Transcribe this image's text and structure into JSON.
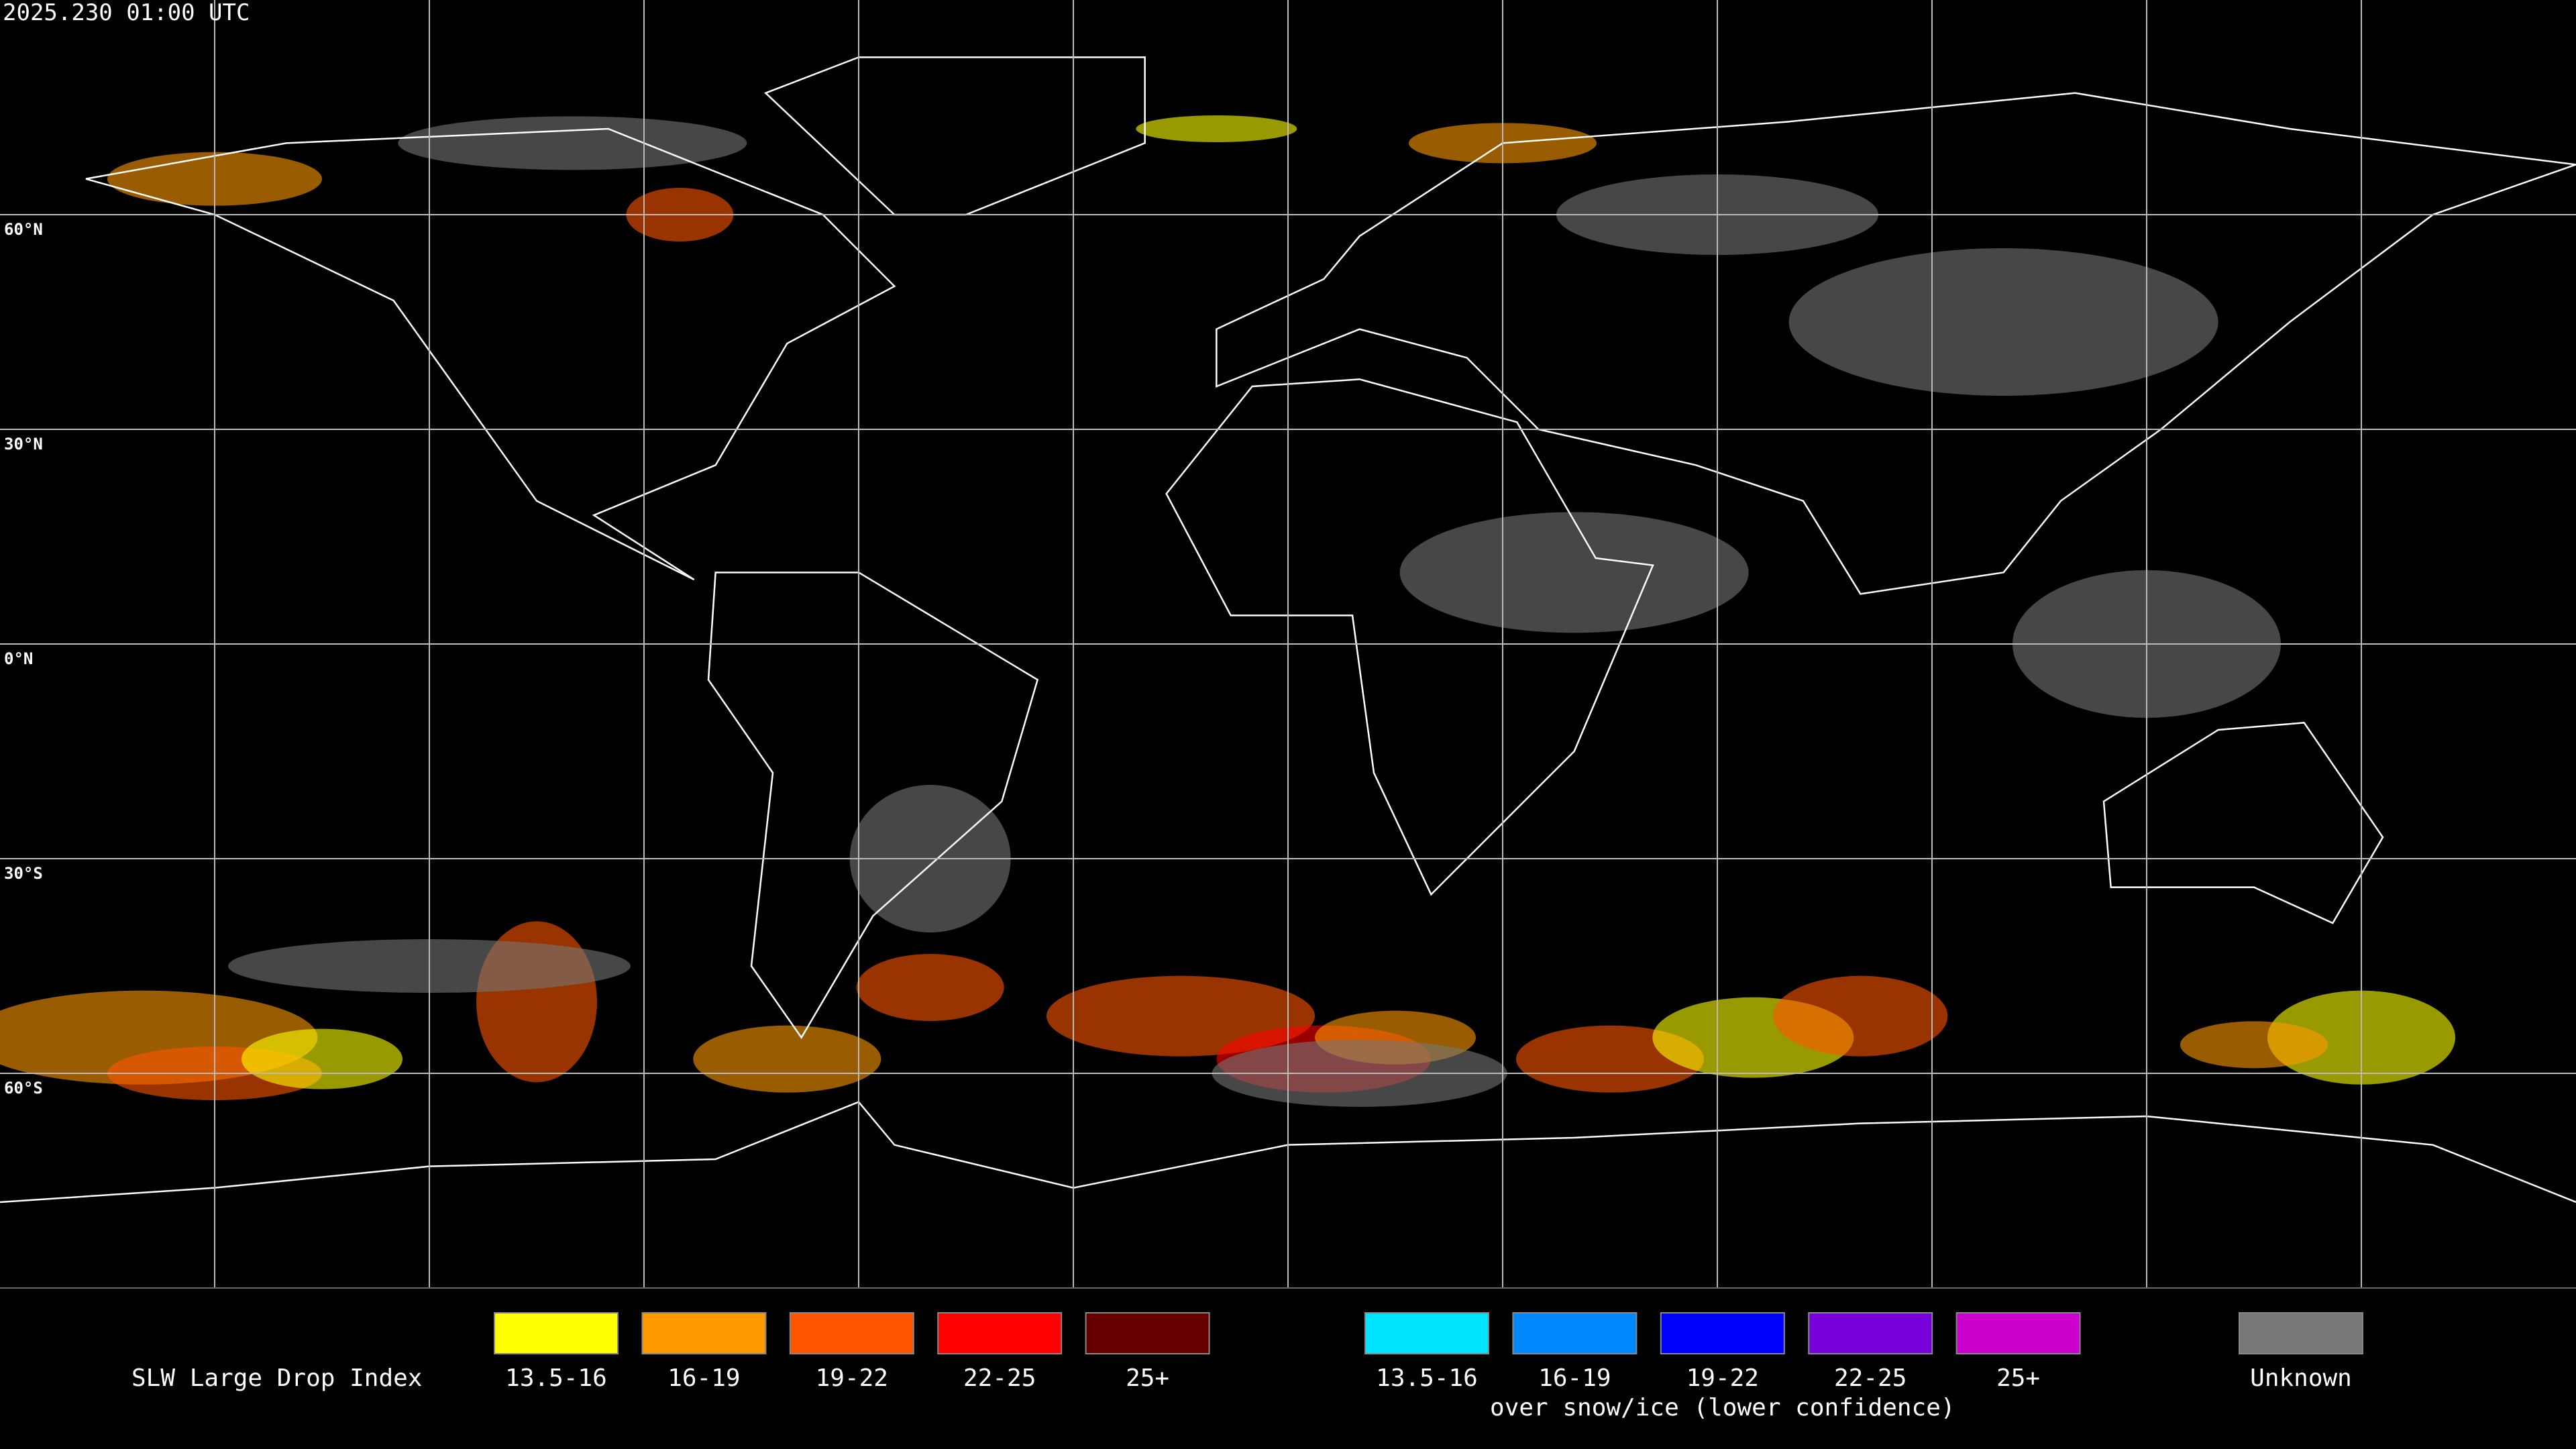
{
  "header": {
    "timestamp": "2025.230 01:00 UTC"
  },
  "map": {
    "latitude_labels": [
      "60°N",
      "30°N",
      "0°N",
      "30°S",
      "60°S"
    ]
  },
  "legend": {
    "title": "SLW Large Drop Index",
    "items": [
      {
        "label": "13.5-16",
        "color": "#ffff00"
      },
      {
        "label": "16-19",
        "color": "#ff9900"
      },
      {
        "label": "19-22",
        "color": "#ff5500"
      },
      {
        "label": "22-25",
        "color": "#ff0000"
      },
      {
        "label": "25+",
        "color": "#660000"
      }
    ],
    "snow_ice_items": [
      {
        "label": "13.5-16",
        "color": "#00e5ff"
      },
      {
        "label": "16-19",
        "color": "#0088ff"
      },
      {
        "label": "19-22",
        "color": "#0000ff"
      },
      {
        "label": "22-25",
        "color": "#7700dd"
      },
      {
        "label": "25+",
        "color": "#cc00cc"
      }
    ],
    "snow_ice_note": "over snow/ice (lower confidence)",
    "unknown": {
      "label": "Unknown",
      "color": "#777777"
    }
  }
}
